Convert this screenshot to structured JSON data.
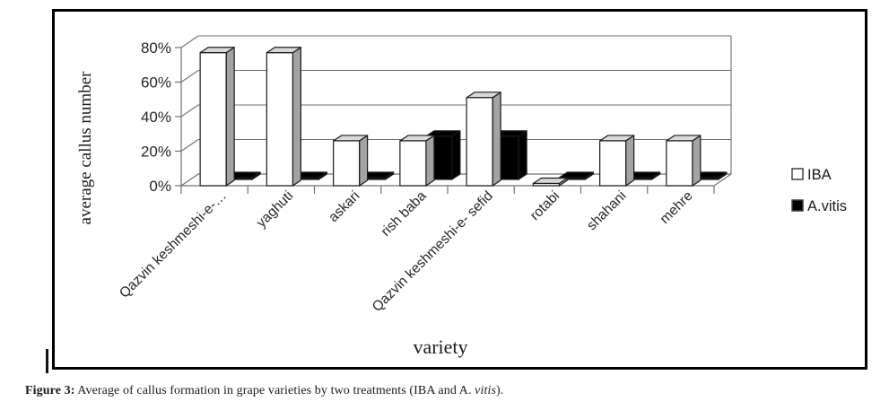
{
  "figure": {
    "caption": {
      "label": "Figure 3:",
      "body": " Average of callus formation in grape varieties by two treatments (IBA and A. ",
      "species": "vitis",
      "closing": ")."
    }
  },
  "chart_data": {
    "type": "bar",
    "variant": "3d-clustered-column",
    "title": "",
    "xlabel": "variety",
    "ylabel": "average callus number",
    "unit": "percent",
    "categories": [
      "Qazvin keshmeshi-e-…",
      "yaghuti",
      "askari",
      "rish baba",
      "Qazvin keshmeshi-e- sefid",
      "rotabi",
      "shahani",
      "mehre"
    ],
    "series": [
      {
        "name": "IBA",
        "fill": "#ffffff",
        "values": [
          77,
          77,
          26,
          26,
          51,
          1,
          26,
          26
        ]
      },
      {
        "name": "A.vitis",
        "fill": "#000000",
        "values": [
          1,
          1,
          1,
          25,
          25,
          1,
          1,
          1
        ]
      }
    ],
    "y_ticks": [
      "0%",
      "20%",
      "40%",
      "60%",
      "80%"
    ],
    "ylim": [
      0,
      80
    ],
    "grid": true,
    "legend_position": "right",
    "colors": {
      "bar_outline": "#1a1a1a",
      "chart_line": "#707070",
      "bar_side_gray": "#a3a3a3",
      "bar_top_gray": "#d9d9d9",
      "text": "#262626"
    }
  }
}
